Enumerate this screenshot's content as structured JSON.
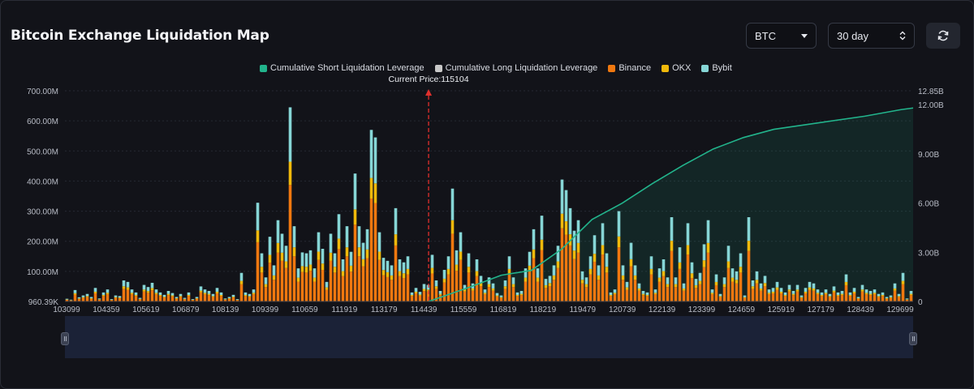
{
  "header": {
    "title": "Bitcoin Exchange Liquidation Map",
    "coin_select": "BTC",
    "range_select": "30 day"
  },
  "icons": {
    "coin_dropdown": "caret-down-icon",
    "range_stepper": "up-down-chevron-icon",
    "refresh": "refresh-icon"
  },
  "colors": {
    "background": "#121319",
    "short_line": "#22b48c",
    "long_line": "#c8c8c8",
    "binance": "#f0780f",
    "okx": "#f0b90b",
    "bybit": "#86d6d6",
    "current_price_marker": "#e0302d"
  },
  "chart_data": {
    "type": "bar",
    "title": "Bitcoin Exchange Liquidation Map",
    "legend": {
      "placement": "top-center",
      "items": [
        {
          "name": "Cumulative Short Liquidation Leverage",
          "color": "#22b48c"
        },
        {
          "name": "Cumulative Long Liquidation Leverage",
          "color": "#c8c8c8"
        },
        {
          "name": "Binance",
          "color": "#f0780f"
        },
        {
          "name": "OKX",
          "color": "#f0b90b"
        },
        {
          "name": "Bybit",
          "color": "#86d6d6"
        }
      ]
    },
    "annotation": "Current Price:115104",
    "current_price": 115104,
    "x_ticks": [
      "103099",
      "104359",
      "105619",
      "106879",
      "108139",
      "109399",
      "110659",
      "111919",
      "113179",
      "114439",
      "115559",
      "116819",
      "118219",
      "119479",
      "120739",
      "122139",
      "123399",
      "124659",
      "125919",
      "127179",
      "128439",
      "129699"
    ],
    "x_range": [
      103099,
      131099
    ],
    "y_left_ticks": [
      "960.39K",
      "100.00M",
      "200.00M",
      "300.00M",
      "400.00M",
      "500.00M",
      "600.00M",
      "700.00M"
    ],
    "y_left_range": [
      0,
      700
    ],
    "y_left_unit": "M",
    "y_right_ticks": [
      "0",
      "3.00B",
      "6.00B",
      "9.00B",
      "12.00B",
      "12.85B"
    ],
    "y_right_range": [
      0,
      12.85
    ],
    "y_right_unit": "B",
    "bar_totals_m": [
      9,
      6,
      38,
      14,
      20,
      25,
      15,
      45,
      10,
      30,
      40,
      8,
      20,
      18,
      70,
      65,
      40,
      30,
      12,
      55,
      48,
      62,
      40,
      30,
      22,
      35,
      28,
      15,
      25,
      12,
      30,
      8,
      15,
      50,
      40,
      35,
      25,
      45,
      30,
      10,
      15,
      22,
      8,
      95,
      30,
      25,
      40,
      328,
      160,
      80,
      215,
      120,
      270,
      225,
      185,
      645,
      250,
      110,
      163,
      160,
      170,
      110,
      230,
      175,
      65,
      225,
      160,
      290,
      140,
      250,
      165,
      425,
      250,
      195,
      240,
      570,
      545,
      230,
      145,
      135,
      120,
      310,
      140,
      130,
      150,
      30,
      45,
      32,
      58,
      55,
      155,
      70,
      35,
      105,
      150,
      375,
      170,
      230,
      55,
      160,
      60,
      140,
      85,
      40,
      80,
      60,
      28,
      20,
      70,
      150,
      80,
      30,
      35,
      110,
      165,
      240,
      110,
      285,
      75,
      85,
      120,
      185,
      405,
      370,
      310,
      235,
      270,
      100,
      80,
      150,
      220,
      120,
      260,
      160,
      30,
      40,
      300,
      120,
      65,
      195,
      120,
      60,
      35,
      30,
      150,
      40,
      110,
      140,
      80,
      280,
      80,
      180,
      60,
      260,
      130,
      75,
      95,
      190,
      270,
      40,
      90,
      25,
      80,
      185,
      110,
      100,
      160,
      20,
      280,
      70,
      100,
      60,
      85,
      40,
      45,
      65,
      45,
      30,
      55,
      35,
      55,
      20,
      45,
      65,
      60,
      40,
      30,
      40,
      25,
      50,
      30,
      35,
      90,
      30,
      45,
      15,
      55,
      40,
      35,
      40,
      25,
      30,
      15,
      20,
      60,
      25,
      95,
      10,
      35
    ],
    "bar_split": {
      "binance": 0.6,
      "okx": 0.12,
      "bybit": 0.28
    },
    "cumulative_short_b": {
      "x_from": 115104,
      "points": [
        [
          115104,
          0
        ],
        [
          116500,
          0.9
        ],
        [
          117500,
          1.6
        ],
        [
          118500,
          1.9
        ],
        [
          119500,
          3.2
        ],
        [
          120500,
          5.0
        ],
        [
          121500,
          6.0
        ],
        [
          122500,
          7.2
        ],
        [
          123500,
          8.3
        ],
        [
          124500,
          9.3
        ],
        [
          125500,
          10.0
        ],
        [
          126500,
          10.5
        ],
        [
          128000,
          10.9
        ],
        [
          129500,
          11.3
        ],
        [
          130700,
          11.7
        ],
        [
          131099,
          11.8
        ]
      ]
    }
  }
}
